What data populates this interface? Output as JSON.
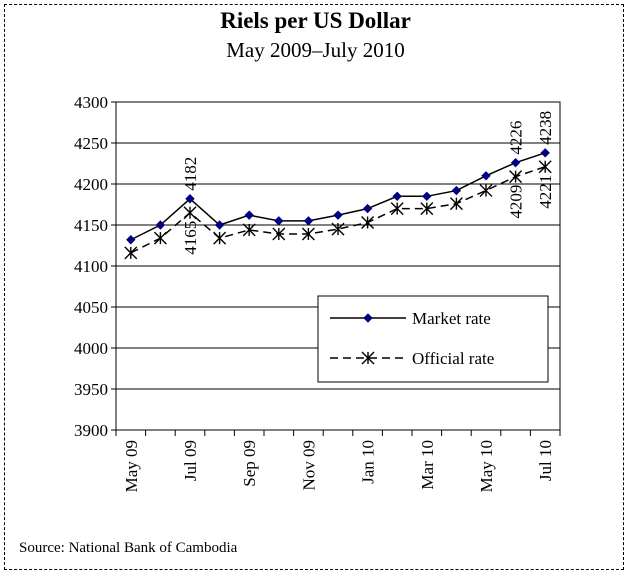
{
  "chart_data": {
    "type": "line",
    "title": "Riels per US Dollar",
    "subtitle": "May 2009–July 2010",
    "xlabel": "",
    "ylabel": "",
    "ylim": [
      3900,
      4300
    ],
    "yticks": [
      3900,
      3950,
      4000,
      4050,
      4100,
      4150,
      4200,
      4250,
      4300
    ],
    "grid": "horizontal",
    "legend_position": "lower-right",
    "categories": [
      "May 09",
      "Jun 09",
      "Jul 09",
      "Aug 09",
      "Sep 09",
      "Oct 09",
      "Nov 09",
      "Dec 09",
      "Jan 10",
      "Feb 10",
      "Mar 10",
      "Apr 10",
      "May 10",
      "Jun 10",
      "Jul 10"
    ],
    "tick_labels": [
      "May 09",
      "",
      "Jul 09",
      "",
      "Sep 09",
      "",
      "Nov 09",
      "",
      "Jan 10",
      "",
      "Mar 10",
      "",
      "May 10",
      "",
      "Jul 10"
    ],
    "series": [
      {
        "name": "Market rate",
        "style": "solid",
        "marker": "diamond",
        "color": "#000080",
        "values": [
          4132,
          4150,
          4182,
          4150,
          4162,
          4155,
          4155,
          4162,
          4170,
          4185,
          4185,
          4192,
          4210,
          4226,
          4238
        ]
      },
      {
        "name": "Official rate",
        "style": "dashed",
        "marker": "asterisk",
        "color": "#000000",
        "values": [
          4116,
          4134,
          4165,
          4134,
          4144,
          4139,
          4139,
          4145,
          4153,
          4170,
          4170,
          4176,
          4192,
          4209,
          4221
        ]
      }
    ],
    "annotations": [
      {
        "series": 0,
        "index": 2,
        "text": "4182"
      },
      {
        "series": 1,
        "index": 2,
        "text": "4165"
      },
      {
        "series": 0,
        "index": 13,
        "text": "4226"
      },
      {
        "series": 1,
        "index": 13,
        "text": "4209"
      },
      {
        "series": 0,
        "index": 14,
        "text": "4238"
      },
      {
        "series": 1,
        "index": 14,
        "text": "4221"
      }
    ]
  },
  "source": "Source: National Bank of Cambodia"
}
